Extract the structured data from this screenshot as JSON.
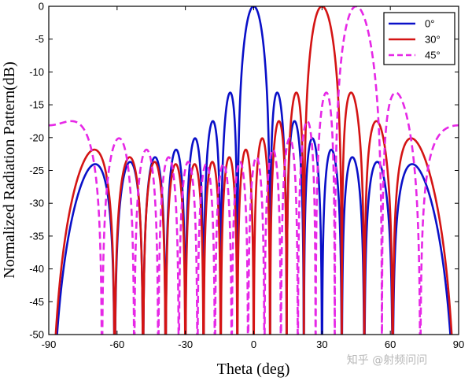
{
  "chart_data": {
    "type": "line",
    "xlabel": "Theta (deg)",
    "ylabel": "Normalized Radiation Pattern(dB)",
    "xlim": [
      -90,
      90
    ],
    "ylim": [
      -50,
      0
    ],
    "xticks": [
      -90,
      -60,
      -30,
      0,
      30,
      60,
      90
    ],
    "yticks": [
      0,
      -5,
      -10,
      -15,
      -20,
      -25,
      -30,
      -35,
      -40,
      -45,
      -50
    ],
    "grid": false,
    "legend_placement": "top-right",
    "array": {
      "elements": 16,
      "spacing_wavelengths": 0.5
    },
    "series": [
      {
        "name": "0°",
        "steer_deg": 0,
        "color": "#0a10c8",
        "dash": "solid"
      },
      {
        "name": "30°",
        "steer_deg": 30,
        "color": "#d41414",
        "dash": "solid"
      },
      {
        "name": "45°",
        "steer_deg": 45,
        "color": "#e628e6",
        "dash": "dashed"
      }
    ]
  },
  "watermark": "知乎 @射频问问"
}
